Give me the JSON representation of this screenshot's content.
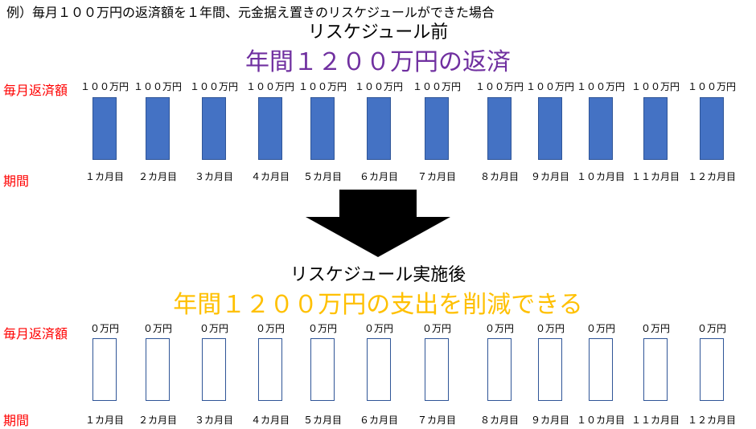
{
  "header": {
    "text": "例）毎月１００万円の返済額を１年間、元金据え置きのリスケジュールができた場合"
  },
  "before": {
    "label": "リスケジュール前",
    "headline": "年間１２００万円の返済",
    "row_label_amount": "毎月返済額",
    "row_label_period": "期間",
    "amounts": [
      "１００万円",
      "１００万円",
      "１００万円",
      "１００万円",
      "１００万円",
      "１００万円",
      "１００万円",
      "１００万円",
      "１００万円",
      "１００万円",
      "１００万円",
      "１００万円"
    ],
    "periods": [
      "１カ月目",
      "２カ月目",
      "３カ月目",
      "４カ月目",
      "５カ月目",
      "６カ月目",
      "７カ月目",
      "８カ月目",
      "９カ月目",
      "１０カ月目",
      "１１カ月目",
      "１２カ月目"
    ]
  },
  "after": {
    "label": "リスケジュール実施後",
    "headline": "年間１２００万円の支出を削減できる",
    "row_label_amount": "毎月返済額",
    "row_label_period": "期間",
    "amounts": [
      "０万円",
      "０万円",
      "０万円",
      "０万円",
      "０万円",
      "０万円",
      "０万円",
      "０万円",
      "０万円",
      "０万円",
      "０万円",
      "０万円"
    ],
    "periods": [
      "１カ月目",
      "２カ月目",
      "３カ月目",
      "４カ月目",
      "５カ月目",
      "６カ月目",
      "７カ月目",
      "８カ月目",
      "９カ月目",
      "１０カ月目",
      "１１カ月目",
      "１２カ月目"
    ]
  },
  "colors": {
    "before_headline": "#7030A0",
    "after_headline": "#FFC000",
    "row_label": "#FF0000",
    "bar": "#4472C4",
    "bar_border": "#2F5597"
  }
}
